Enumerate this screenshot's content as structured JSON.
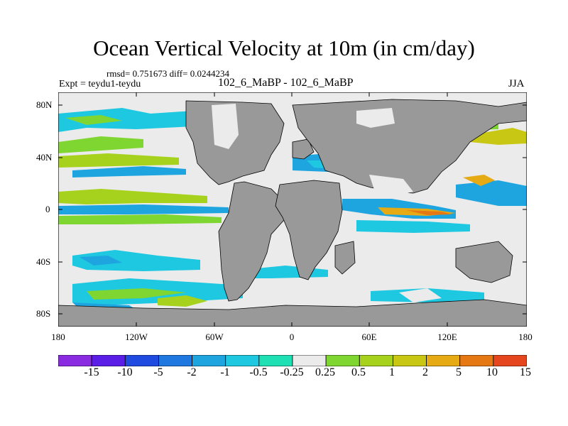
{
  "title": "Ocean Vertical Velocity at 10m (in cm/day)",
  "stats": "rmsd= 0.751673 diff= 0.0244234",
  "experiment": "Expt = teydu1-teydu",
  "case": "102_6_MaBP - 102_6_MaBP",
  "season": "JJA",
  "map": {
    "lat_ticks": [
      "80N",
      "40N",
      "0",
      "40S",
      "80S"
    ],
    "lon_ticks": [
      "180",
      "120W",
      "60W",
      "0",
      "60E",
      "120E",
      "180"
    ],
    "land_color": "#999999",
    "near_zero_color": "#ebebeb"
  },
  "colorbar": {
    "colors": [
      "#8a2be2",
      "#5a1ee6",
      "#1f4be0",
      "#1e78e0",
      "#1ea5e0",
      "#1ec8e0",
      "#1ee0b4",
      "#ebebeb",
      "#7fd630",
      "#a6d21e",
      "#c8c814",
      "#e6aa14",
      "#e67814",
      "#e6461e"
    ],
    "labels": [
      "-15",
      "-10",
      "-5",
      "-2",
      "-1",
      "-0.5",
      "-0.25",
      "0.25",
      "0.5",
      "1",
      "2",
      "5",
      "10",
      "15"
    ]
  }
}
